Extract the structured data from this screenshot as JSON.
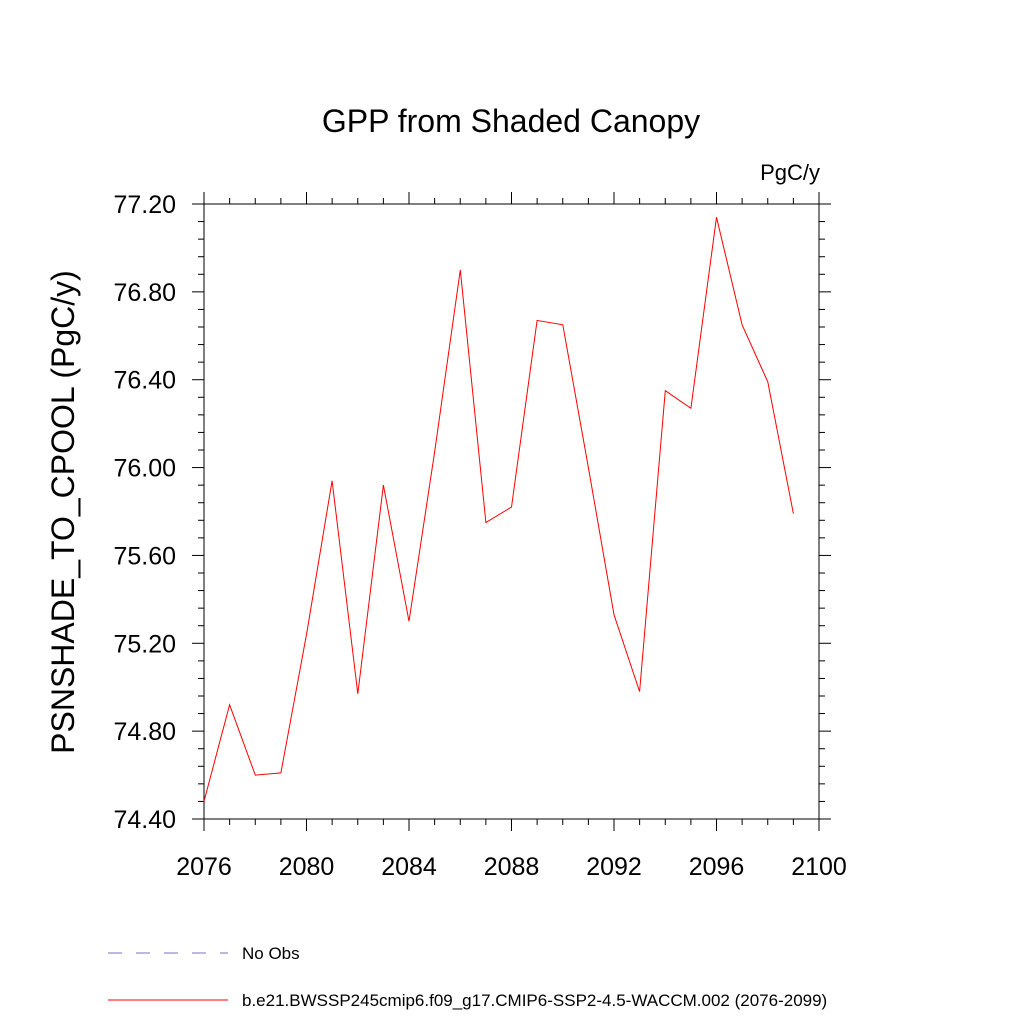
{
  "chart_data": {
    "type": "line",
    "title": "GPP from Shaded Canopy",
    "units_label": "PgC/y",
    "ylabel": "PSNSHADE_TO_CPOOL  (PgC/y)",
    "xlabel": "",
    "xlim": [
      2076,
      2100
    ],
    "ylim": [
      74.4,
      77.2
    ],
    "x_ticks": [
      "2076",
      "2080",
      "2084",
      "2088",
      "2092",
      "2096",
      "2100"
    ],
    "y_ticks": [
      "74.40",
      "74.80",
      "75.20",
      "75.60",
      "76.00",
      "76.40",
      "76.80",
      "77.20"
    ],
    "grid": false,
    "series": [
      {
        "name": "b.e21.BWSSP245cmip6.f09_g17.CMIP6-SSP2-4.5-WACCM.002 (2076-2099)",
        "color": "#ff0000",
        "style": "solid",
        "x": [
          2076,
          2077,
          2078,
          2079,
          2080,
          2081,
          2082,
          2083,
          2084,
          2085,
          2086,
          2087,
          2088,
          2089,
          2090,
          2091,
          2092,
          2093,
          2094,
          2095,
          2096,
          2097,
          2098,
          2099
        ],
        "values": [
          74.48,
          74.92,
          74.6,
          74.61,
          75.24,
          75.94,
          74.97,
          75.92,
          75.3,
          76.07,
          76.9,
          75.75,
          75.82,
          76.67,
          76.65,
          76.0,
          75.33,
          74.98,
          76.35,
          76.27,
          77.14,
          76.65,
          76.39,
          75.79
        ]
      }
    ],
    "legend": [
      {
        "label": "No Obs",
        "color": "#7a6fc7",
        "style": "dashed"
      },
      {
        "label": "b.e21.BWSSP245cmip6.f09_g17.CMIP6-SSP2-4.5-WACCM.002 (2076-2099)",
        "color": "#ff0000",
        "style": "solid"
      }
    ],
    "legend_position": "bottom-left"
  }
}
